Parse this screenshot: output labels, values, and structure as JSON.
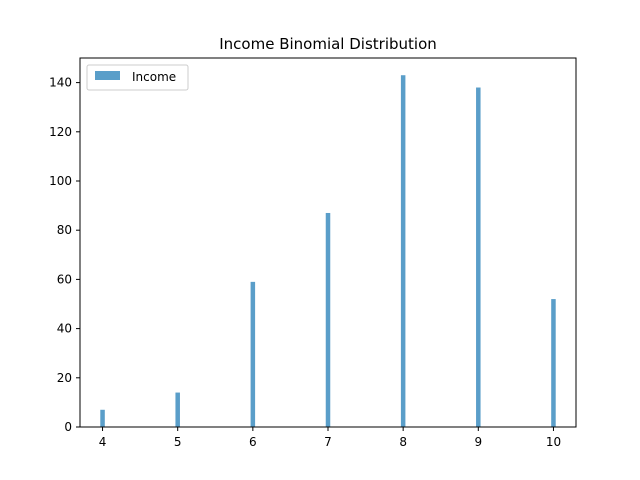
{
  "chart_data": {
    "type": "bar",
    "title": "Income Binomial Distribution",
    "xlabel": "",
    "ylabel": "",
    "x": [
      4,
      5,
      6,
      7,
      8,
      9,
      10
    ],
    "series": [
      {
        "name": "Income",
        "values": [
          7,
          14,
          59,
          87,
          143,
          138,
          52
        ],
        "color": "#5a9ec9"
      }
    ],
    "xlim": [
      3.7,
      10.3
    ],
    "ylim": [
      0,
      150
    ],
    "xticks": [
      4,
      5,
      6,
      7,
      8,
      9,
      10
    ],
    "yticks": [
      0,
      20,
      40,
      60,
      80,
      100,
      120,
      140
    ],
    "bar_width": 0.06,
    "grid": false,
    "legend_position": "upper-left"
  }
}
